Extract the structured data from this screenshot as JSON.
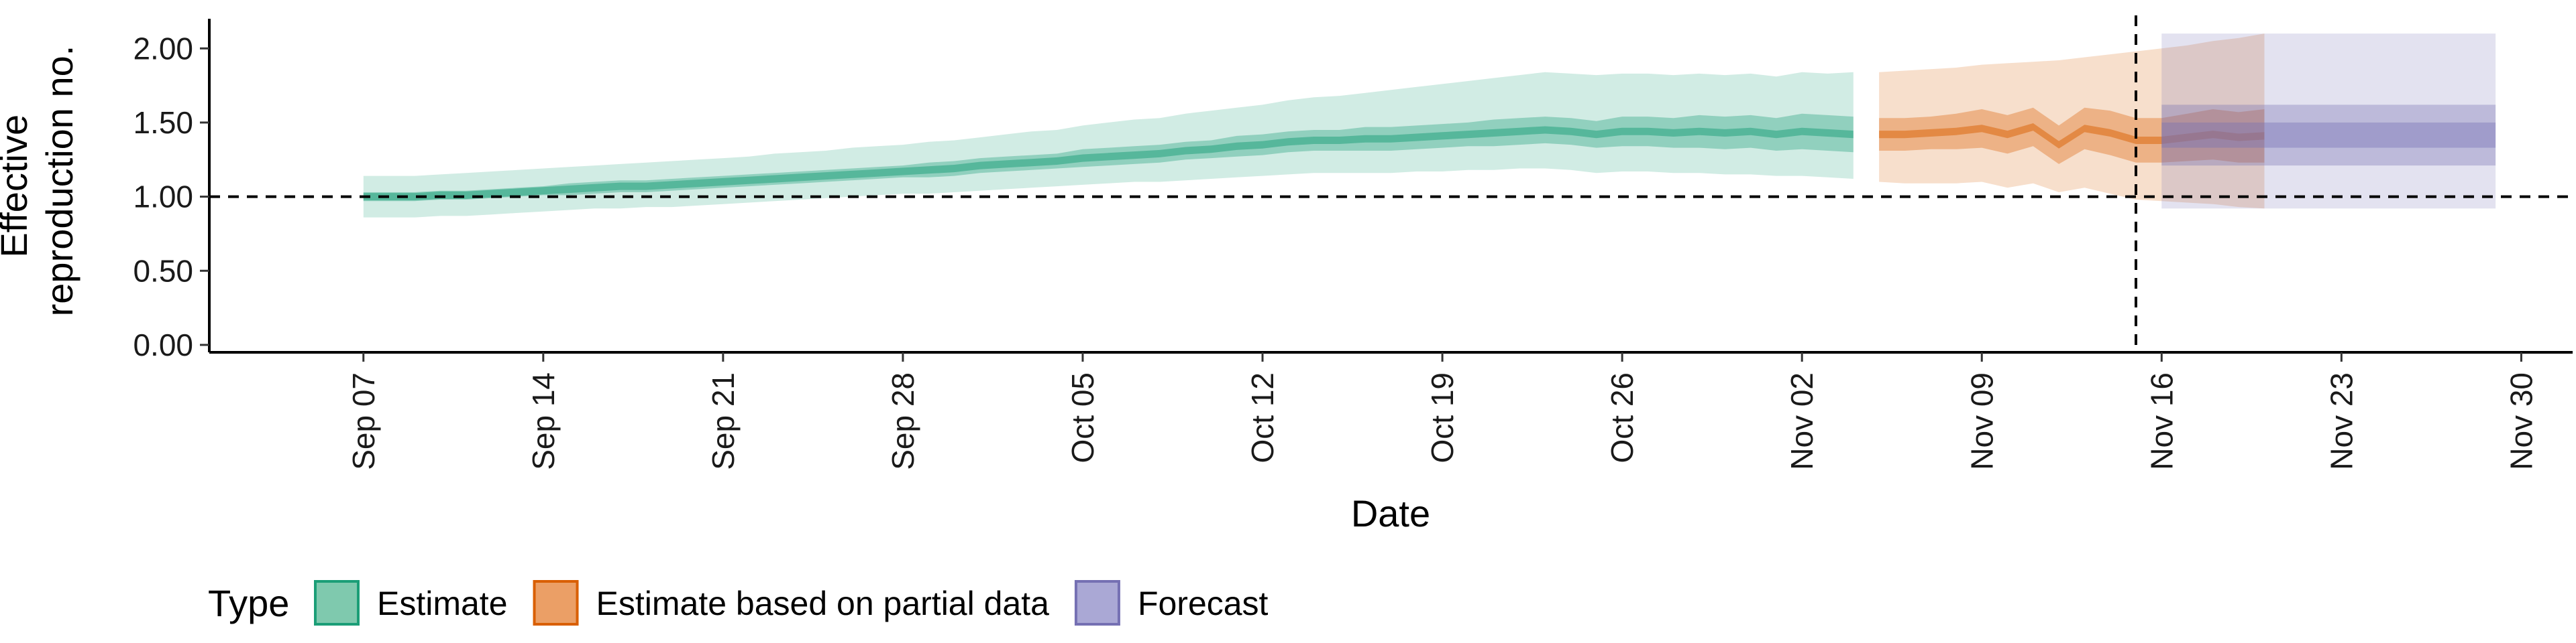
{
  "chart_data": {
    "type": "area",
    "xlabel": "Date",
    "ylabel_lines": [
      "Effective",
      "reproduction no."
    ],
    "ylim": [
      -0.05,
      2.2
    ],
    "y_ticks": [
      0.0,
      0.5,
      1.0,
      1.5,
      2.0
    ],
    "y_tick_labels": [
      "0.00",
      "0.50",
      "1.00",
      "1.50",
      "2.00"
    ],
    "x_range": [
      "2020-09-01",
      "2020-12-02"
    ],
    "x_tick_dates": [
      "2020-09-07",
      "2020-09-14",
      "2020-09-21",
      "2020-09-28",
      "2020-10-05",
      "2020-10-12",
      "2020-10-19",
      "2020-10-26",
      "2020-11-02",
      "2020-11-09",
      "2020-11-16",
      "2020-11-23",
      "2020-11-30"
    ],
    "x_tick_labels": [
      "Sep 07",
      "Sep 14",
      "Sep 21",
      "Sep 28",
      "Oct 05",
      "Oct 12",
      "Oct 19",
      "Oct 26",
      "Nov 02",
      "Nov 09",
      "Nov 16",
      "Nov 23",
      "Nov 30"
    ],
    "hline": 1.0,
    "vline_date": "2020-11-15",
    "legend": {
      "title": "Type",
      "position": "bottom",
      "entries": [
        {
          "label": "Estimate",
          "fill": "#7fc9ae",
          "stroke": "#1b9e77"
        },
        {
          "label": "Estimate based on partial data",
          "fill": "#eb9f66",
          "stroke": "#d95f02"
        },
        {
          "label": "Forecast",
          "fill": "#aaa8d5",
          "stroke": "#7570b3"
        }
      ]
    },
    "series": [
      {
        "name": "Estimate",
        "color": "#1b9e77",
        "start_date": "2020-09-07",
        "median": [
          1.0,
          1.0,
          1.0,
          1.01,
          1.01,
          1.02,
          1.03,
          1.04,
          1.05,
          1.06,
          1.07,
          1.07,
          1.08,
          1.09,
          1.1,
          1.11,
          1.12,
          1.13,
          1.14,
          1.15,
          1.16,
          1.17,
          1.18,
          1.19,
          1.21,
          1.22,
          1.23,
          1.24,
          1.26,
          1.27,
          1.28,
          1.29,
          1.31,
          1.32,
          1.34,
          1.35,
          1.37,
          1.38,
          1.38,
          1.39,
          1.39,
          1.4,
          1.41,
          1.42,
          1.43,
          1.44,
          1.45,
          1.44,
          1.42,
          1.44,
          1.44,
          1.43,
          1.44,
          1.43,
          1.44,
          1.42,
          1.44,
          1.43,
          1.42
        ],
        "lower50": [
          0.97,
          0.97,
          0.97,
          0.98,
          0.98,
          0.99,
          1.0,
          1.01,
          1.01,
          1.02,
          1.03,
          1.03,
          1.04,
          1.05,
          1.06,
          1.07,
          1.08,
          1.09,
          1.1,
          1.11,
          1.12,
          1.13,
          1.13,
          1.14,
          1.16,
          1.17,
          1.18,
          1.19,
          1.2,
          1.21,
          1.22,
          1.23,
          1.25,
          1.26,
          1.27,
          1.28,
          1.3,
          1.31,
          1.31,
          1.31,
          1.31,
          1.32,
          1.33,
          1.34,
          1.34,
          1.35,
          1.36,
          1.35,
          1.33,
          1.34,
          1.34,
          1.33,
          1.33,
          1.32,
          1.33,
          1.31,
          1.32,
          1.31,
          1.3
        ],
        "upper50": [
          1.03,
          1.03,
          1.03,
          1.04,
          1.04,
          1.05,
          1.06,
          1.07,
          1.09,
          1.1,
          1.11,
          1.11,
          1.12,
          1.13,
          1.14,
          1.15,
          1.16,
          1.17,
          1.18,
          1.19,
          1.2,
          1.21,
          1.23,
          1.24,
          1.26,
          1.27,
          1.28,
          1.29,
          1.32,
          1.33,
          1.34,
          1.35,
          1.37,
          1.38,
          1.41,
          1.42,
          1.44,
          1.45,
          1.45,
          1.47,
          1.47,
          1.48,
          1.49,
          1.5,
          1.52,
          1.53,
          1.54,
          1.53,
          1.51,
          1.54,
          1.54,
          1.53,
          1.55,
          1.54,
          1.55,
          1.53,
          1.56,
          1.55,
          1.54
        ],
        "lower90": [
          0.86,
          0.86,
          0.86,
          0.87,
          0.87,
          0.88,
          0.89,
          0.9,
          0.91,
          0.92,
          0.92,
          0.93,
          0.93,
          0.94,
          0.95,
          0.96,
          0.97,
          0.98,
          0.99,
          1.0,
          1.01,
          1.02,
          1.02,
          1.03,
          1.04,
          1.05,
          1.06,
          1.07,
          1.08,
          1.09,
          1.1,
          1.1,
          1.11,
          1.12,
          1.13,
          1.14,
          1.15,
          1.16,
          1.16,
          1.16,
          1.16,
          1.17,
          1.17,
          1.18,
          1.18,
          1.19,
          1.19,
          1.18,
          1.16,
          1.17,
          1.17,
          1.16,
          1.16,
          1.15,
          1.15,
          1.14,
          1.14,
          1.13,
          1.12
        ],
        "upper90": [
          1.14,
          1.14,
          1.14,
          1.15,
          1.16,
          1.17,
          1.18,
          1.19,
          1.2,
          1.21,
          1.22,
          1.23,
          1.24,
          1.25,
          1.26,
          1.27,
          1.29,
          1.3,
          1.31,
          1.33,
          1.34,
          1.35,
          1.37,
          1.38,
          1.4,
          1.42,
          1.44,
          1.45,
          1.48,
          1.5,
          1.52,
          1.53,
          1.56,
          1.58,
          1.6,
          1.62,
          1.65,
          1.67,
          1.68,
          1.7,
          1.72,
          1.74,
          1.76,
          1.78,
          1.8,
          1.82,
          1.84,
          1.83,
          1.82,
          1.83,
          1.83,
          1.82,
          1.83,
          1.82,
          1.83,
          1.81,
          1.84,
          1.83,
          1.84
        ]
      },
      {
        "name": "Estimate based on partial data",
        "color": "#d95f02",
        "start_date": "2020-11-05",
        "median": [
          1.42,
          1.42,
          1.43,
          1.44,
          1.46,
          1.42,
          1.47,
          1.35,
          1.46,
          1.43,
          1.38,
          1.38,
          1.4,
          1.42,
          1.4,
          1.41
        ],
        "lower50": [
          1.31,
          1.31,
          1.32,
          1.32,
          1.33,
          1.29,
          1.34,
          1.22,
          1.32,
          1.28,
          1.23,
          1.23,
          1.24,
          1.25,
          1.23,
          1.23
        ],
        "upper50": [
          1.53,
          1.53,
          1.54,
          1.56,
          1.59,
          1.55,
          1.6,
          1.48,
          1.6,
          1.58,
          1.53,
          1.53,
          1.56,
          1.59,
          1.57,
          1.59
        ],
        "lower90": [
          1.1,
          1.09,
          1.09,
          1.09,
          1.1,
          1.06,
          1.09,
          1.03,
          1.06,
          1.02,
          0.98,
          0.97,
          0.96,
          0.95,
          0.93,
          0.92
        ],
        "upper90": [
          1.84,
          1.85,
          1.86,
          1.87,
          1.89,
          1.9,
          1.91,
          1.92,
          1.94,
          1.96,
          1.98,
          2.0,
          2.02,
          2.05,
          2.07,
          2.1
        ]
      },
      {
        "name": "Forecast",
        "color": "#7570b3",
        "start_date": "2020-11-16",
        "end_date": "2020-11-29",
        "median": 1.41,
        "lower20": 1.33,
        "upper20": 1.5,
        "lower50": 1.21,
        "upper50": 1.62,
        "lower90": 0.92,
        "upper90": 2.1
      }
    ]
  }
}
